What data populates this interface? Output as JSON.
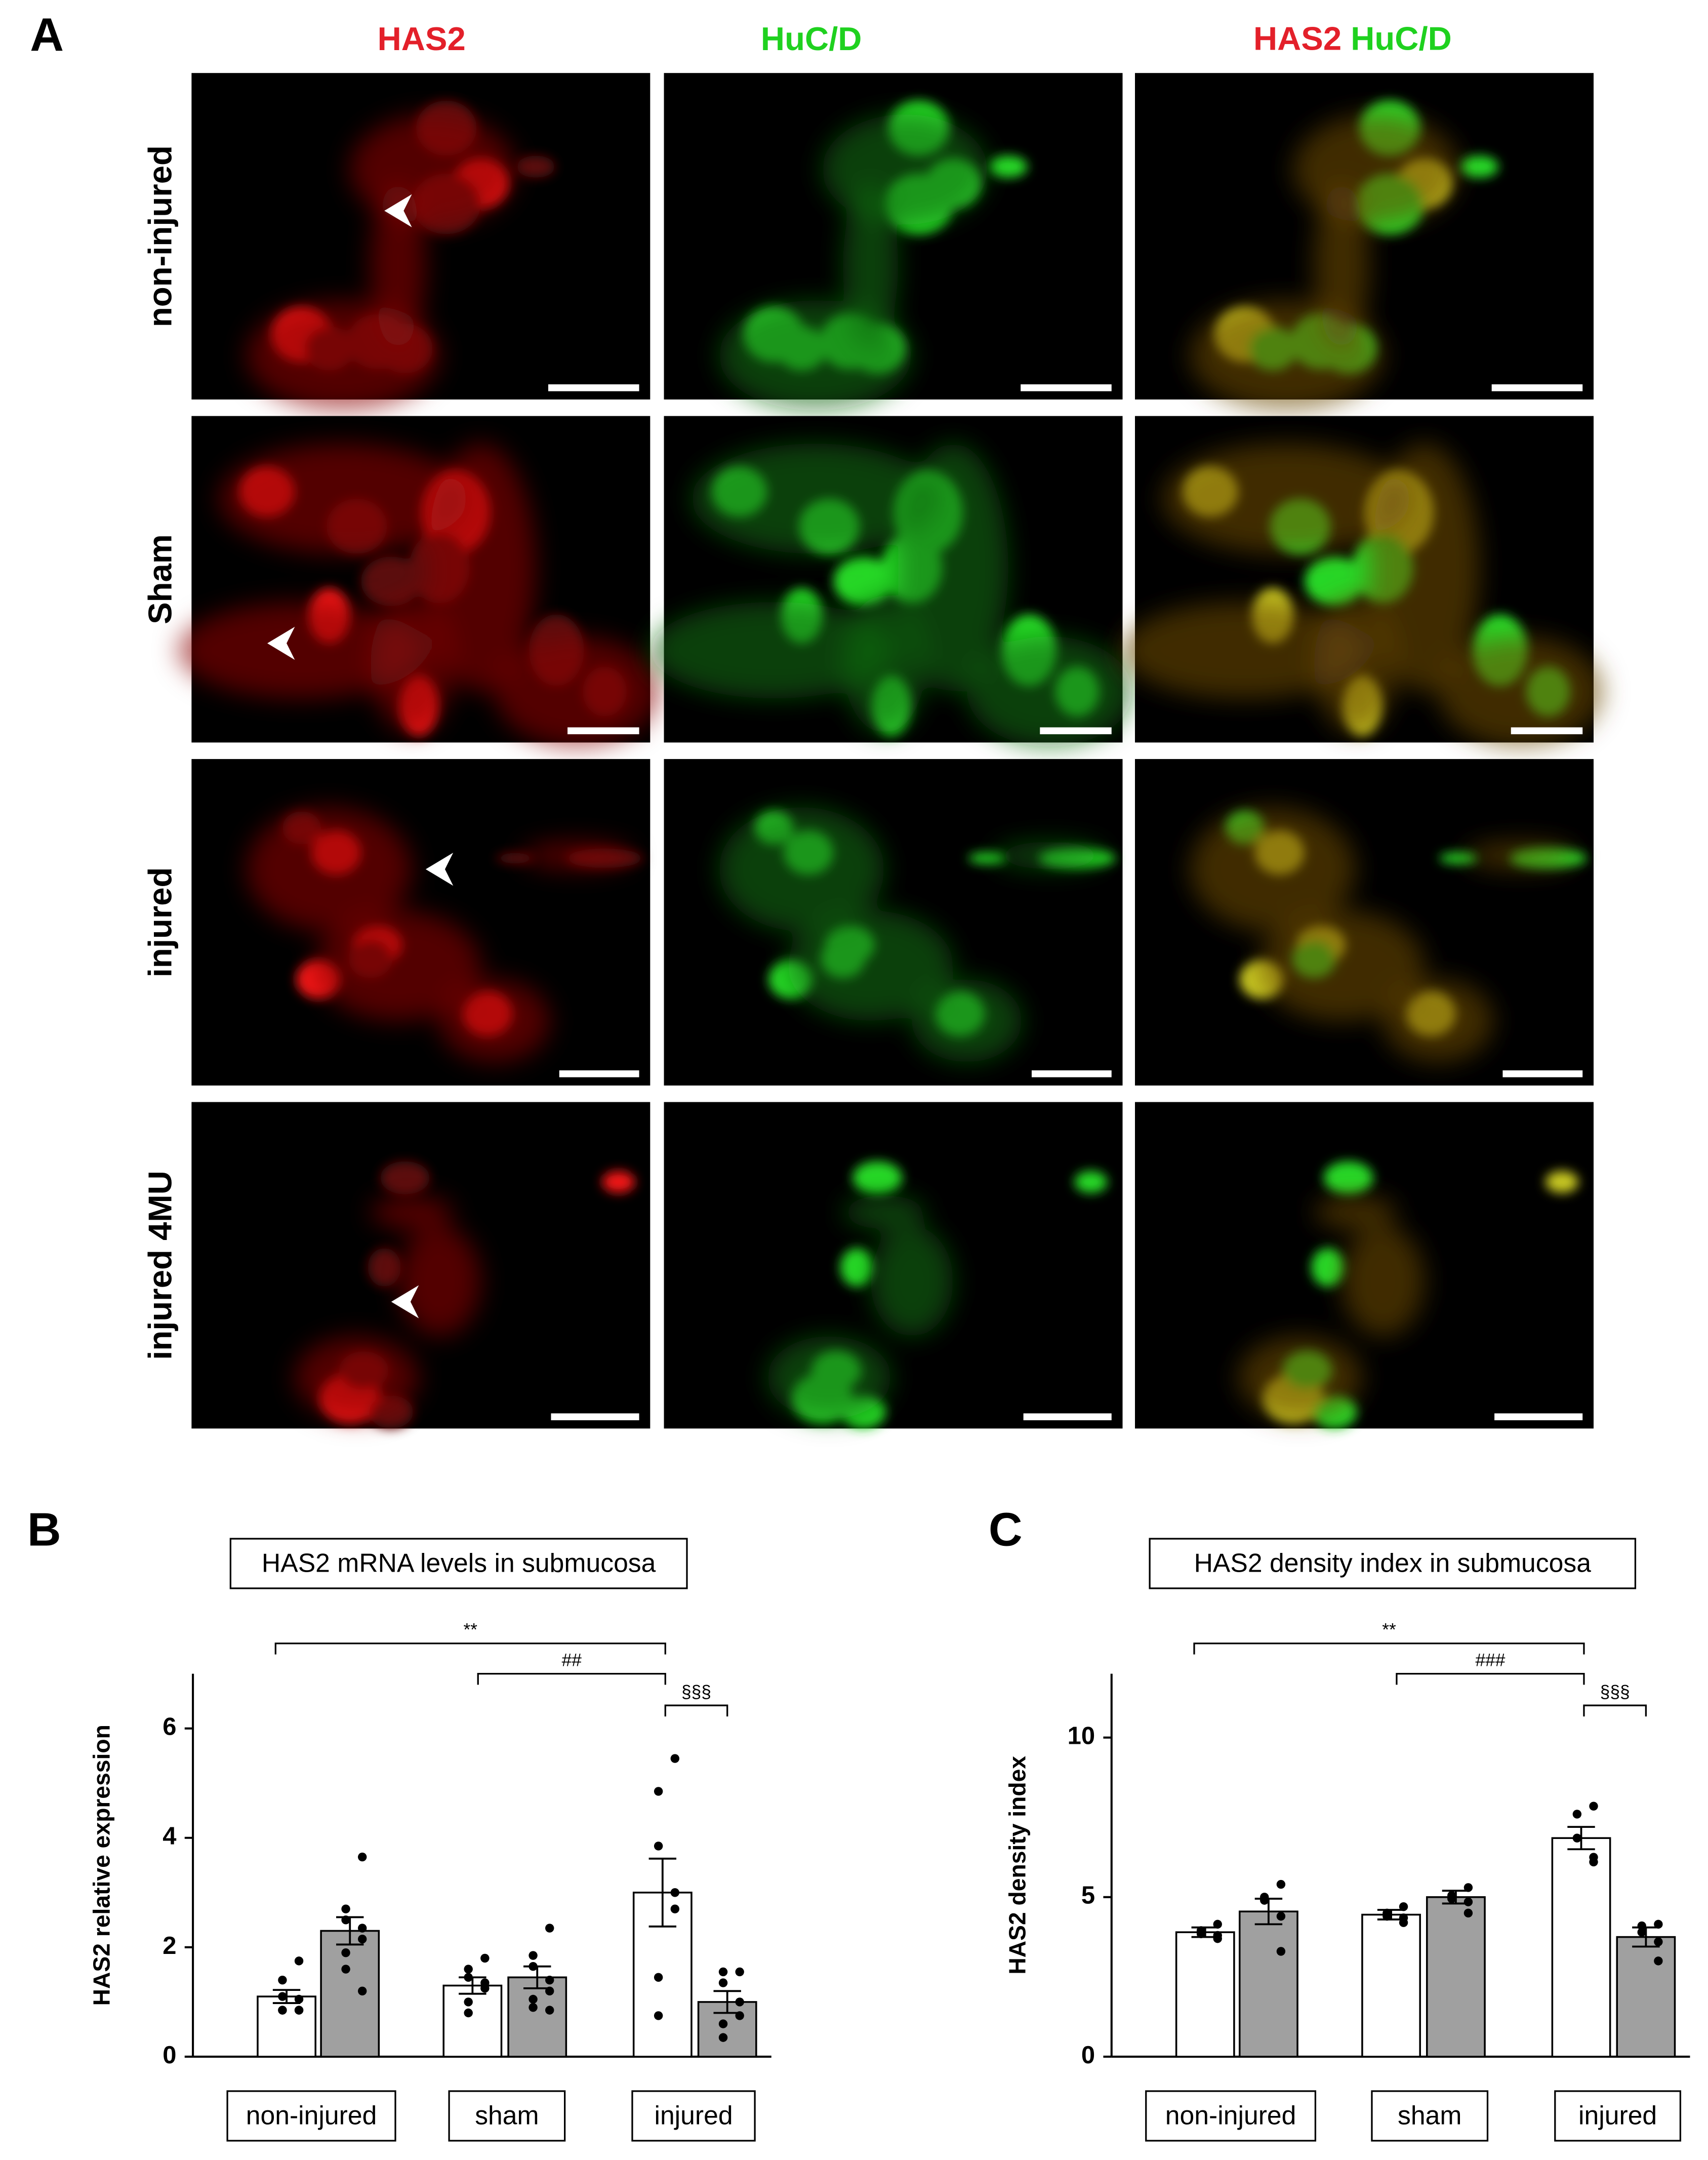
{
  "panel_a": {
    "label": "A",
    "column_titles": [
      "HAS2",
      "HuC/D"
    ],
    "row_labels": [
      "non-injured",
      "Sham",
      "injured",
      "injured 4MU"
    ]
  },
  "chart_data": [
    {
      "type": "bar",
      "panel_label": "B",
      "title": "HAS2 mRNA levels in submucosa",
      "ylabel": "HAS2 relative expression",
      "categories": [
        "non-injured",
        "sham",
        "injured"
      ],
      "series": [
        {
          "color": "#ffffff",
          "values": [
            1.1,
            1.3,
            3.0
          ],
          "errors": [
            0.12,
            0.15,
            0.62
          ],
          "points": [
            [
              1.75,
              1.4,
              1.1,
              1.05,
              0.85,
              0.85,
              0.85,
              0.85
            ],
            [
              1.8,
              1.6,
              1.45,
              1.35,
              1.25,
              1.0,
              0.8
            ],
            [
              5.45,
              4.85,
              3.85,
              3.0,
              2.7,
              1.45,
              0.75
            ]
          ]
        },
        {
          "color": "#a0a0a0",
          "values": [
            2.3,
            1.45,
            1.0
          ],
          "errors": [
            0.25,
            0.2,
            0.2
          ],
          "points": [
            [
              3.65,
              2.7,
              2.5,
              2.35,
              2.15,
              1.9,
              1.6,
              1.2
            ],
            [
              2.35,
              1.85,
              1.65,
              1.4,
              1.2,
              1.05,
              0.9,
              0.85
            ],
            [
              1.55,
              1.55,
              1.35,
              1.0,
              0.75,
              0.6,
              0.35
            ]
          ]
        }
      ],
      "ylim": [
        0,
        7
      ],
      "yticks": [
        0,
        2,
        4,
        6
      ],
      "annotations": [
        "**",
        "##",
        "§§§"
      ]
    },
    {
      "type": "bar",
      "panel_label": "C",
      "title": "HAS2 density index in submucosa",
      "ylabel": "HAS2 density index",
      "categories": [
        "non-injured",
        "sham",
        "injured"
      ],
      "series": [
        {
          "color": "#ffffff",
          "values": [
            3.9,
            4.45,
            6.85
          ],
          "errors": [
            0.15,
            0.15,
            0.35
          ],
          "points": [
            [
              4.15,
              3.95,
              3.85,
              3.8,
              3.7
            ],
            [
              4.7,
              4.5,
              4.4,
              4.35,
              4.2
            ],
            [
              7.85,
              7.6,
              6.85,
              6.25,
              6.1
            ]
          ]
        },
        {
          "color": "#a0a0a0",
          "values": [
            4.55,
            5.0,
            3.75
          ],
          "errors": [
            0.4,
            0.2,
            0.3
          ],
          "points": [
            [
              5.4,
              5.0,
              4.9,
              4.4,
              3.3
            ],
            [
              5.3,
              5.05,
              4.95,
              4.85,
              4.5
            ],
            [
              4.15,
              4.1,
              3.9,
              3.6,
              3.0
            ]
          ]
        }
      ],
      "ylim": [
        0,
        12
      ],
      "yticks": [
        0,
        5,
        10
      ],
      "annotations": [
        "**",
        "###",
        "§§§"
      ]
    }
  ]
}
